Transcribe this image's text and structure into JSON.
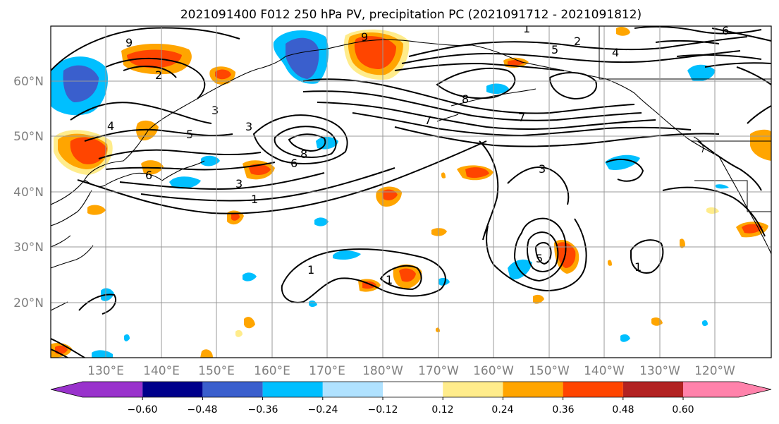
{
  "title": "2021091400 F012 250 hPa PV, precipitation PC (2021091712 - 2021091812)",
  "map": {
    "lon_range": [
      120,
      250
    ],
    "lat_range": [
      10,
      70
    ],
    "lat_labels": [
      "20°N",
      "30°N",
      "40°N",
      "50°N",
      "60°N"
    ],
    "lon_labels": [
      "130°E",
      "140°E",
      "150°E",
      "160°E",
      "170°E",
      "180°W",
      "170°W",
      "160°W",
      "150°W",
      "140°W",
      "130°W",
      "120°W"
    ],
    "gridlines": true,
    "projection": "PlateCarree"
  },
  "contour_labels": [
    "1",
    "1",
    "1",
    "1",
    "1",
    "2",
    "2",
    "3",
    "3",
    "3",
    "3",
    "4",
    "4",
    "5",
    "5",
    "5",
    "6",
    "6",
    "6",
    "7",
    "7",
    "8",
    "8",
    "9",
    "9"
  ],
  "colorbar": {
    "tick_labels": [
      "−0.60",
      "−0.48",
      "−0.36",
      "−0.24",
      "−0.12",
      "0.12",
      "0.24",
      "0.36",
      "0.48",
      "0.60"
    ],
    "colors": [
      "#9932cc",
      "#00008b",
      "#3a5fcd",
      "#00bfff",
      "#b0e2ff",
      "#ffffff",
      "#ffec8b",
      "#ffa500",
      "#ff4500",
      "#b22222",
      "#ff82ab"
    ],
    "extend": "both"
  }
}
